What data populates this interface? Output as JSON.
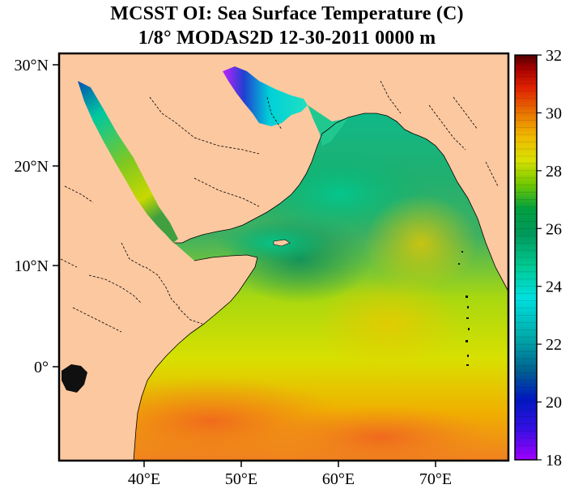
{
  "title": {
    "line1": "MCSST OI:  Sea Surface Temperature (C)",
    "line2": "1/8° MODAS2D 12-30-2011 0000 m"
  },
  "axes": {
    "lat_labels": [
      "30°N",
      "20°N",
      "10°N",
      "0°"
    ],
    "lon_labels": [
      "40°E",
      "50°E",
      "60°E",
      "70°E"
    ]
  },
  "colorbar": {
    "min": 18,
    "max": 32,
    "tick_labels": [
      "32",
      "30",
      "28",
      "26",
      "24",
      "22",
      "20",
      "18"
    ],
    "colors": [
      "#8b00ff",
      "#2000c8",
      "#0060b0",
      "#00d8d0",
      "#00b070",
      "#006040",
      "#90d000",
      "#e8e800",
      "#f0a000",
      "#e03000",
      "#b00000",
      "#400000"
    ]
  },
  "colors": {
    "land": "#fcc8a0",
    "sea_base": "#c8e020"
  }
}
